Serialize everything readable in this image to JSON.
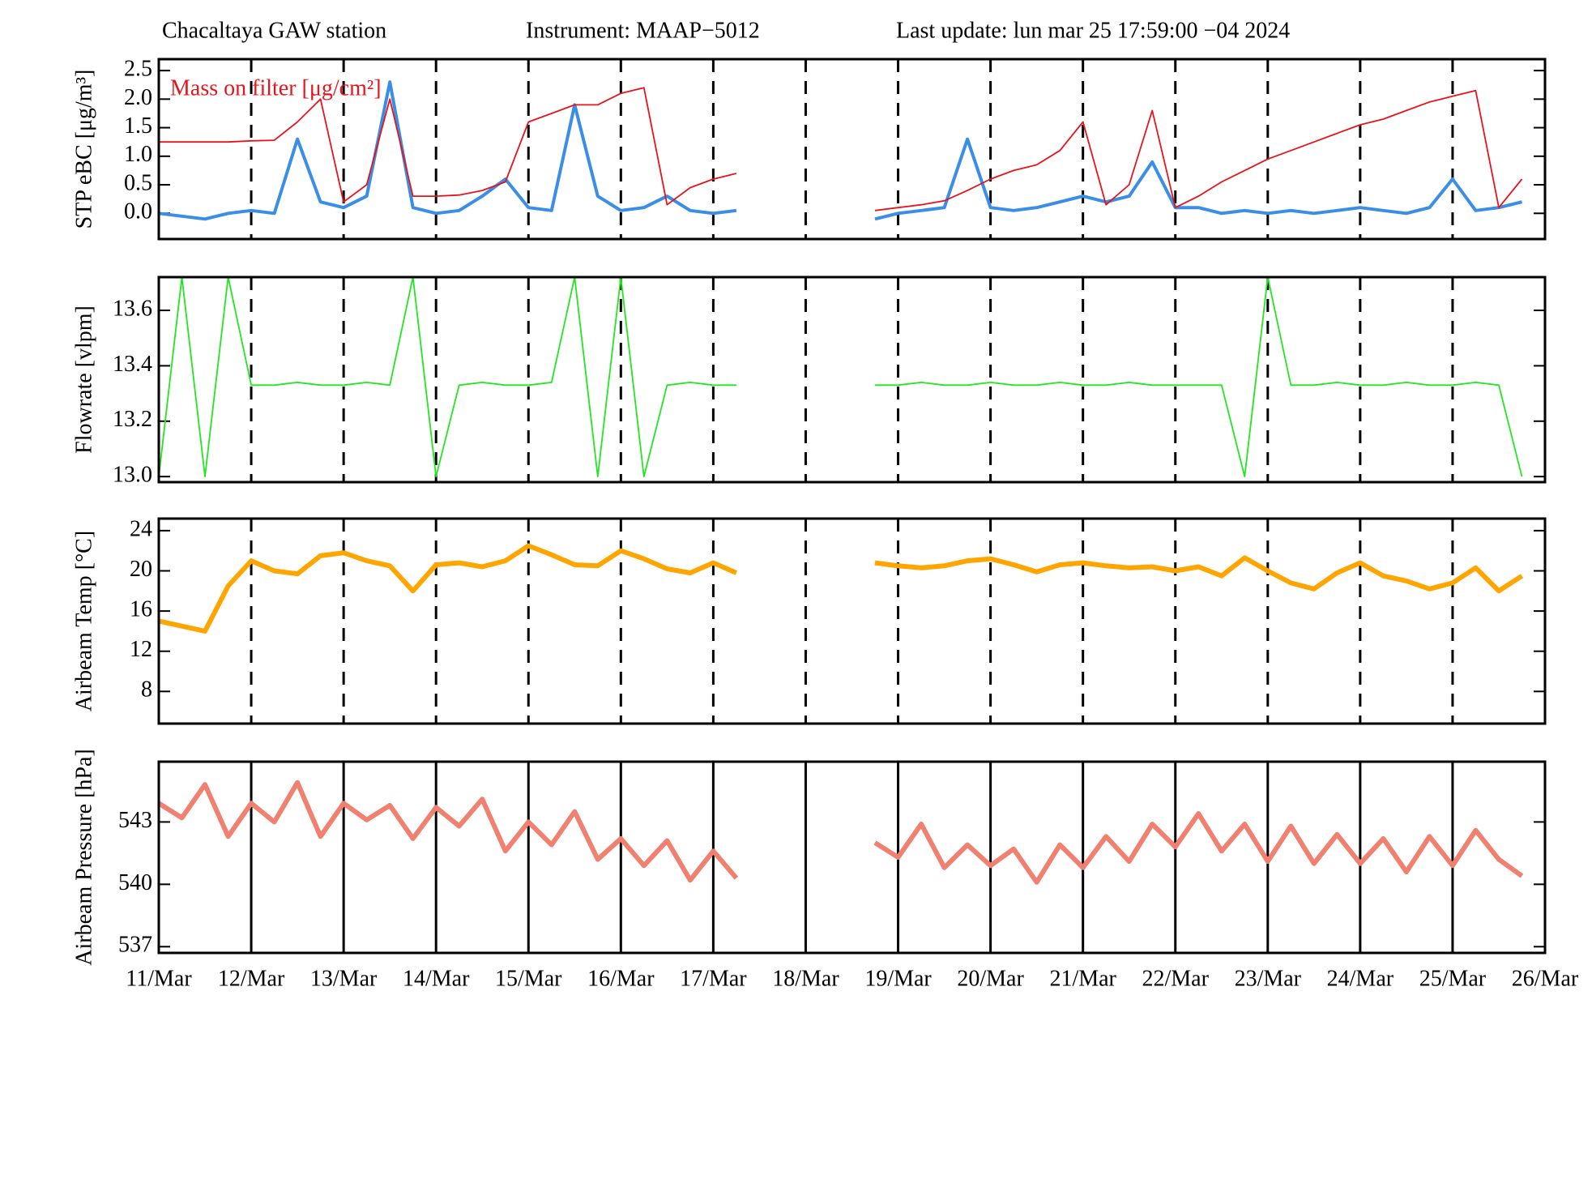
{
  "header": {
    "station": "Chacaltaya GAW station",
    "instrument": "Instrument: MAAP−5012",
    "last_update": "Last update: lun mar 25 17:59:00 −04 2024"
  },
  "chart_data": [
    {
      "type": "line",
      "ylabel": "STP eBC [μg/m³]",
      "x": [
        11,
        11.25,
        11.5,
        11.75,
        12,
        12.25,
        12.5,
        12.75,
        13,
        13.25,
        13.5,
        13.75,
        14,
        14.25,
        14.5,
        14.75,
        15,
        15.25,
        15.5,
        15.75,
        16,
        16.25,
        16.5,
        16.75,
        17,
        17.25,
        17.5,
        17.75,
        18,
        18.25,
        18.5,
        18.75,
        19,
        19.25,
        19.5,
        19.75,
        20,
        20.25,
        20.5,
        20.75,
        21,
        21.25,
        21.5,
        21.75,
        22,
        22.25,
        22.5,
        22.75,
        23,
        23.25,
        23.5,
        23.75,
        24,
        24.25,
        24.5,
        24.75,
        25,
        25.25,
        25.5,
        25.75
      ],
      "series": [
        {
          "color": "#3a8ee6",
          "values": [
            0.0,
            -0.05,
            -0.1,
            0.0,
            0.05,
            0.0,
            1.3,
            0.2,
            0.1,
            0.3,
            2.3,
            0.1,
            0.0,
            0.05,
            0.3,
            0.6,
            0.1,
            0.05,
            1.9,
            0.3,
            0.05,
            0.1,
            0.3,
            0.05,
            0.0,
            0.05,
            null,
            null,
            null,
            null,
            null,
            -0.1,
            0.0,
            0.05,
            0.1,
            1.3,
            0.1,
            0.05,
            0.1,
            0.2,
            0.3,
            0.2,
            0.3,
            0.9,
            0.1,
            0.1,
            0.0,
            0.05,
            0.0,
            0.05,
            0.0,
            0.05,
            0.1,
            0.05,
            0.0,
            0.1,
            0.6,
            0.05,
            0.1,
            0.2
          ]
        },
        {
          "name": "Mass on filter [μg/cm²]",
          "color": "#e8141c",
          "values": [
            1.25,
            1.25,
            1.25,
            1.25,
            1.27,
            1.28,
            1.6,
            2.0,
            0.2,
            0.5,
            2.0,
            0.3,
            0.3,
            0.32,
            0.4,
            0.55,
            1.6,
            1.75,
            1.9,
            1.9,
            2.1,
            2.2,
            0.15,
            0.45,
            0.6,
            0.7,
            null,
            null,
            null,
            null,
            null,
            0.05,
            0.1,
            0.15,
            0.22,
            0.4,
            0.6,
            0.75,
            0.85,
            1.1,
            1.6,
            0.15,
            0.5,
            1.8,
            0.1,
            0.3,
            0.55,
            0.75,
            0.95,
            1.1,
            1.25,
            1.4,
            1.55,
            1.65,
            1.8,
            1.95,
            2.05,
            2.15,
            0.1,
            0.6
          ]
        }
      ],
      "xlim": [
        11,
        26
      ],
      "ylim": [
        -0.45,
        2.7
      ],
      "xticks": [
        11,
        12,
        13,
        14,
        15,
        16,
        17,
        18,
        19,
        20,
        21,
        22,
        23,
        24,
        25,
        26
      ],
      "yticks": [
        {
          "value": 0,
          "label": "0.0"
        },
        0.5,
        {
          "value": 1,
          "label": "1.0"
        },
        1.5,
        {
          "value": 2,
          "label": "2.0"
        },
        2.5
      ],
      "grid": true,
      "grid_style": "dashed"
    },
    {
      "type": "line",
      "ylabel": "Flowrate  [vlpm]",
      "x": [
        11,
        11.25,
        11.5,
        11.75,
        12,
        12.25,
        12.5,
        12.75,
        13,
        13.25,
        13.5,
        13.75,
        14,
        14.25,
        14.5,
        14.75,
        15,
        15.25,
        15.5,
        15.75,
        16,
        16.25,
        16.5,
        16.75,
        17,
        17.25,
        17.5,
        17.75,
        18,
        18.25,
        18.5,
        18.75,
        19,
        19.25,
        19.5,
        19.75,
        20,
        20.25,
        20.5,
        20.75,
        21,
        21.25,
        21.5,
        21.75,
        22,
        22.25,
        22.5,
        22.75,
        23,
        23.25,
        23.5,
        23.75,
        24,
        24.25,
        24.5,
        24.75,
        25,
        25.25,
        25.5,
        25.75
      ],
      "series": [
        {
          "color": "#22e622",
          "values": [
            13.0,
            13.72,
            13.0,
            13.72,
            13.33,
            13.33,
            13.34,
            13.33,
            13.33,
            13.34,
            13.33,
            13.72,
            13.0,
            13.33,
            13.34,
            13.33,
            13.33,
            13.34,
            13.72,
            13.0,
            13.72,
            13.0,
            13.33,
            13.34,
            13.33,
            13.33,
            null,
            null,
            null,
            null,
            null,
            13.33,
            13.33,
            13.34,
            13.33,
            13.33,
            13.34,
            13.33,
            13.33,
            13.34,
            13.33,
            13.33,
            13.34,
            13.33,
            13.33,
            13.33,
            13.33,
            13.0,
            13.72,
            13.33,
            13.33,
            13.34,
            13.33,
            13.33,
            13.34,
            13.33,
            13.33,
            13.34,
            13.33,
            13.0
          ]
        }
      ],
      "xlim": [
        11,
        26
      ],
      "ylim": [
        12.98,
        13.72
      ],
      "xticks": [
        11,
        12,
        13,
        14,
        15,
        16,
        17,
        18,
        19,
        20,
        21,
        22,
        23,
        24,
        25,
        26
      ],
      "yticks": [
        {
          "value": 13,
          "label": "13.0"
        },
        13.2,
        13.4,
        13.6
      ],
      "grid": true,
      "grid_style": "dashed"
    },
    {
      "type": "line",
      "ylabel": "Airbeam Temp [°C]",
      "x": [
        11,
        11.25,
        11.5,
        11.75,
        12,
        12.25,
        12.5,
        12.75,
        13,
        13.25,
        13.5,
        13.75,
        14,
        14.25,
        14.5,
        14.75,
        15,
        15.25,
        15.5,
        15.75,
        16,
        16.25,
        16.5,
        16.75,
        17,
        17.25,
        17.5,
        17.75,
        18,
        18.25,
        18.5,
        18.75,
        19,
        19.25,
        19.5,
        19.75,
        20,
        20.25,
        20.5,
        20.75,
        21,
        21.25,
        21.5,
        21.75,
        22,
        22.25,
        22.5,
        22.75,
        23,
        23.25,
        23.5,
        23.75,
        24,
        24.25,
        24.5,
        24.75,
        25,
        25.25,
        25.5,
        25.75
      ],
      "series": [
        {
          "color": "#ffa500",
          "values": [
            15.0,
            14.5,
            14.0,
            18.5,
            21.0,
            20.0,
            19.7,
            21.5,
            21.8,
            21.0,
            20.5,
            18.0,
            20.6,
            20.8,
            20.4,
            21.0,
            22.5,
            21.6,
            20.6,
            20.5,
            22.0,
            21.2,
            20.2,
            19.8,
            20.8,
            19.8,
            null,
            null,
            null,
            null,
            null,
            20.8,
            20.5,
            20.3,
            20.5,
            21.0,
            21.2,
            20.6,
            19.9,
            20.6,
            20.8,
            20.5,
            20.3,
            20.4,
            20.0,
            20.4,
            19.5,
            21.3,
            20.0,
            18.8,
            18.2,
            19.8,
            20.8,
            19.5,
            19.0,
            18.2,
            18.8,
            20.3,
            18.0,
            19.5
          ]
        }
      ],
      "xlim": [
        11,
        26
      ],
      "ylim": [
        4.8,
        25.2
      ],
      "xticks": [
        11,
        12,
        13,
        14,
        15,
        16,
        17,
        18,
        19,
        20,
        21,
        22,
        23,
        24,
        25,
        26
      ],
      "yticks": [
        8,
        12,
        16,
        20,
        24
      ],
      "grid": true,
      "grid_style": "dashed"
    },
    {
      "type": "line",
      "ylabel": "Airbeam Pressure [hPa]",
      "x": [
        11,
        11.25,
        11.5,
        11.75,
        12,
        12.25,
        12.5,
        12.75,
        13,
        13.25,
        13.5,
        13.75,
        14,
        14.25,
        14.5,
        14.75,
        15,
        15.25,
        15.5,
        15.75,
        16,
        16.25,
        16.5,
        16.75,
        17,
        17.25,
        17.5,
        17.75,
        18,
        18.25,
        18.5,
        18.75,
        19,
        19.25,
        19.5,
        19.75,
        20,
        20.25,
        20.5,
        20.75,
        21,
        21.25,
        21.5,
        21.75,
        22,
        22.25,
        22.5,
        22.75,
        23,
        23.25,
        23.5,
        23.75,
        24,
        24.25,
        24.5,
        24.75,
        25,
        25.25,
        25.5,
        25.75
      ],
      "series": [
        {
          "color": "#f08070",
          "values": [
            543.9,
            543.2,
            544.8,
            542.3,
            543.9,
            543.0,
            544.9,
            542.3,
            543.9,
            543.1,
            543.8,
            542.2,
            543.7,
            542.8,
            544.1,
            541.6,
            543.0,
            541.9,
            543.5,
            541.2,
            542.2,
            540.9,
            542.1,
            540.2,
            541.6,
            540.3,
            null,
            null,
            null,
            null,
            null,
            542.0,
            541.3,
            542.9,
            540.8,
            541.9,
            540.9,
            541.7,
            540.1,
            541.9,
            540.8,
            542.3,
            541.1,
            542.9,
            541.8,
            543.4,
            541.6,
            542.9,
            541.1,
            542.8,
            541.0,
            542.4,
            541.0,
            542.2,
            540.6,
            542.3,
            540.9,
            542.6,
            541.2,
            540.4
          ]
        }
      ],
      "xlim": [
        11,
        26
      ],
      "ylim": [
        536.7,
        545.9
      ],
      "xticks": [
        {
          "value": 11,
          "label": "11/Mar"
        },
        {
          "value": 12,
          "label": "12/Mar"
        },
        {
          "value": 13,
          "label": "13/Mar"
        },
        {
          "value": 14,
          "label": "14/Mar"
        },
        {
          "value": 15,
          "label": "15/Mar"
        },
        {
          "value": 16,
          "label": "16/Mar"
        },
        {
          "value": 17,
          "label": "17/Mar"
        },
        {
          "value": 18,
          "label": "18/Mar"
        },
        {
          "value": 19,
          "label": "19/Mar"
        },
        {
          "value": 20,
          "label": "20/Mar"
        },
        {
          "value": 21,
          "label": "21/Mar"
        },
        {
          "value": 22,
          "label": "22/Mar"
        },
        {
          "value": 23,
          "label": "23/Mar"
        },
        {
          "value": 24,
          "label": "24/Mar"
        },
        {
          "value": 25,
          "label": "25/Mar"
        },
        {
          "value": 26,
          "label": "26/Mar"
        }
      ],
      "yticks": [
        537,
        540,
        543
      ],
      "grid": true,
      "grid_style": "solid"
    }
  ]
}
